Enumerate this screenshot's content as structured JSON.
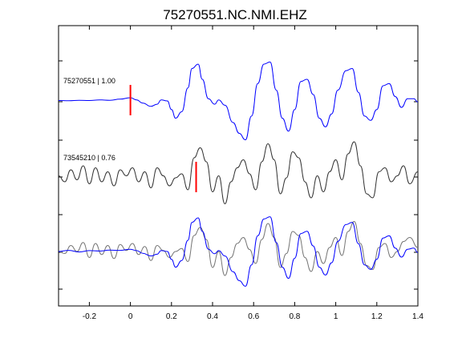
{
  "chart_data": {
    "type": "line",
    "title": "75270551.NC.NMI.EHZ",
    "xlabel": "",
    "ylabel": "",
    "xlim": [
      -0.35,
      1.4
    ],
    "xticks": [
      -0.2,
      0,
      0.2,
      0.4,
      0.6,
      0.8,
      1,
      1.2,
      1.4
    ],
    "xtick_labels": [
      "-0.2",
      "0",
      "0.2",
      "0.4",
      "0.6",
      "0.8",
      "1",
      "1.2",
      "1.4"
    ],
    "grid": false,
    "colors": {
      "primary": "#0000ff",
      "secondary": "#333333",
      "overlay": "#777777",
      "pick": "#ff0000"
    },
    "series": [
      {
        "label": "75270551 | 1.00",
        "color": "#0000ff",
        "pick_time": 0.0,
        "x": [
          -0.35,
          -0.3,
          -0.25,
          -0.2,
          -0.15,
          -0.1,
          -0.05,
          0.0,
          0.03,
          0.06,
          0.1,
          0.13,
          0.15,
          0.18,
          0.2,
          0.22,
          0.25,
          0.28,
          0.3,
          0.33,
          0.35,
          0.38,
          0.41,
          0.43,
          0.46,
          0.5,
          0.53,
          0.56,
          0.59,
          0.62,
          0.65,
          0.68,
          0.71,
          0.74,
          0.77,
          0.8,
          0.83,
          0.86,
          0.89,
          0.92,
          0.95,
          0.98,
          1.01,
          1.05,
          1.08,
          1.11,
          1.14,
          1.17,
          1.2,
          1.23,
          1.26,
          1.29,
          1.32,
          1.35,
          1.38,
          1.4
        ],
        "y": [
          0.02,
          0.01,
          0.03,
          0.02,
          0.05,
          0.03,
          0.08,
          0.15,
          0.05,
          -0.1,
          -0.25,
          -0.15,
          0.05,
          0.0,
          -0.4,
          -0.8,
          -0.5,
          0.6,
          1.5,
          1.7,
          1.0,
          0.1,
          -0.15,
          0.05,
          -0.2,
          -1.0,
          -1.5,
          -1.8,
          -0.7,
          0.8,
          1.7,
          1.8,
          0.5,
          -0.8,
          -1.4,
          -0.4,
          0.9,
          1.0,
          0.3,
          -0.8,
          -1.2,
          -0.6,
          0.5,
          1.4,
          1.5,
          0.4,
          -0.7,
          -0.9,
          -0.4,
          0.7,
          0.8,
          0.2,
          -0.3,
          0.1,
          0.1,
          -0.05
        ]
      },
      {
        "label": "73545210 | 0.76",
        "color": "#333333",
        "pick_time": 0.32,
        "x": [
          -0.35,
          -0.32,
          -0.29,
          -0.26,
          -0.23,
          -0.2,
          -0.17,
          -0.14,
          -0.11,
          -0.08,
          -0.05,
          -0.02,
          0.01,
          0.04,
          0.07,
          0.1,
          0.13,
          0.16,
          0.19,
          0.22,
          0.25,
          0.28,
          0.31,
          0.34,
          0.37,
          0.4,
          0.43,
          0.46,
          0.49,
          0.52,
          0.55,
          0.58,
          0.61,
          0.64,
          0.67,
          0.7,
          0.73,
          0.76,
          0.79,
          0.82,
          0.85,
          0.88,
          0.91,
          0.94,
          0.97,
          1.0,
          1.03,
          1.06,
          1.09,
          1.12,
          1.15,
          1.18,
          1.21,
          1.24,
          1.27,
          1.3,
          1.33,
          1.36,
          1.4
        ],
        "y": [
          0.1,
          -0.2,
          0.4,
          -0.1,
          0.6,
          -0.3,
          0.5,
          -0.2,
          0.3,
          -0.4,
          0.4,
          0.1,
          0.5,
          -0.2,
          0.3,
          -0.5,
          0.5,
          0.1,
          -0.4,
          0.0,
          0.2,
          -0.6,
          1.0,
          1.5,
          0.8,
          -0.7,
          0.1,
          -1.3,
          -0.2,
          0.5,
          0.9,
          0.2,
          -0.6,
          0.8,
          1.7,
          0.9,
          -0.8,
          0.0,
          1.3,
          1.0,
          -0.2,
          -1.0,
          0.1,
          -0.7,
          0.3,
          0.9,
          -0.1,
          1.2,
          1.8,
          0.6,
          -0.8,
          -1.0,
          0.3,
          0.5,
          -0.2,
          0.1,
          0.6,
          -0.3,
          0.3
        ]
      },
      {
        "label": "",
        "color": "#777777",
        "x": [
          -0.35,
          -0.32,
          -0.29,
          -0.26,
          -0.23,
          -0.2,
          -0.17,
          -0.14,
          -0.11,
          -0.08,
          -0.05,
          -0.02,
          0.01,
          0.04,
          0.07,
          0.1,
          0.13,
          0.16,
          0.19,
          0.22,
          0.25,
          0.28,
          0.31,
          0.34,
          0.37,
          0.4,
          0.43,
          0.46,
          0.49,
          0.52,
          0.55,
          0.58,
          0.61,
          0.64,
          0.67,
          0.7,
          0.73,
          0.76,
          0.79,
          0.82,
          0.85,
          0.88,
          0.91,
          0.94,
          0.97,
          1.0,
          1.03,
          1.06,
          1.09,
          1.12,
          1.15,
          1.18,
          1.21,
          1.24,
          1.27,
          1.3,
          1.33,
          1.36,
          1.4
        ],
        "y": [
          0.0,
          -0.1,
          0.3,
          0.0,
          0.45,
          -0.3,
          0.4,
          -0.15,
          0.3,
          -0.35,
          0.35,
          0.05,
          0.4,
          -0.15,
          0.25,
          -0.45,
          0.3,
          0.05,
          -0.3,
          0.0,
          0.15,
          -0.5,
          0.8,
          1.2,
          0.6,
          -0.8,
          0.0,
          -1.2,
          -0.3,
          0.4,
          0.7,
          0.1,
          -0.6,
          0.6,
          1.4,
          0.7,
          -0.8,
          -0.1,
          1.0,
          0.8,
          -0.3,
          -1.0,
          0.0,
          -0.6,
          0.2,
          0.7,
          -0.2,
          1.0,
          1.5,
          0.4,
          -0.7,
          -0.9,
          0.2,
          0.4,
          -0.3,
          0.0,
          0.5,
          0.7,
          0.2
        ]
      },
      {
        "label": "",
        "color": "#0000ff",
        "x": [
          -0.35,
          -0.3,
          -0.25,
          -0.2,
          -0.15,
          -0.1,
          -0.05,
          0.0,
          0.03,
          0.06,
          0.1,
          0.13,
          0.15,
          0.18,
          0.2,
          0.22,
          0.25,
          0.28,
          0.3,
          0.33,
          0.35,
          0.38,
          0.41,
          0.43,
          0.46,
          0.5,
          0.53,
          0.56,
          0.59,
          0.62,
          0.65,
          0.68,
          0.71,
          0.74,
          0.77,
          0.8,
          0.83,
          0.86,
          0.89,
          0.92,
          0.95,
          0.98,
          1.01,
          1.05,
          1.08,
          1.11,
          1.14,
          1.17,
          1.2,
          1.23,
          1.26,
          1.29,
          1.32,
          1.35,
          1.38,
          1.4
        ],
        "y": [
          0.0,
          0.05,
          -0.02,
          0.04,
          0.02,
          0.06,
          0.05,
          0.1,
          0.04,
          -0.08,
          -0.2,
          -0.12,
          0.04,
          0.0,
          -0.35,
          -0.7,
          -0.4,
          0.5,
          1.3,
          1.5,
          0.9,
          0.1,
          -0.1,
          0.04,
          -0.2,
          -0.9,
          -1.3,
          -1.55,
          -0.6,
          0.7,
          1.45,
          1.55,
          0.4,
          -0.7,
          -1.2,
          -0.3,
          0.8,
          0.9,
          0.25,
          -0.7,
          -1.05,
          -0.5,
          0.45,
          1.2,
          1.3,
          0.35,
          -0.6,
          -0.8,
          -0.35,
          0.6,
          0.7,
          0.15,
          -0.25,
          0.1,
          0.15,
          -0.05
        ]
      }
    ]
  }
}
